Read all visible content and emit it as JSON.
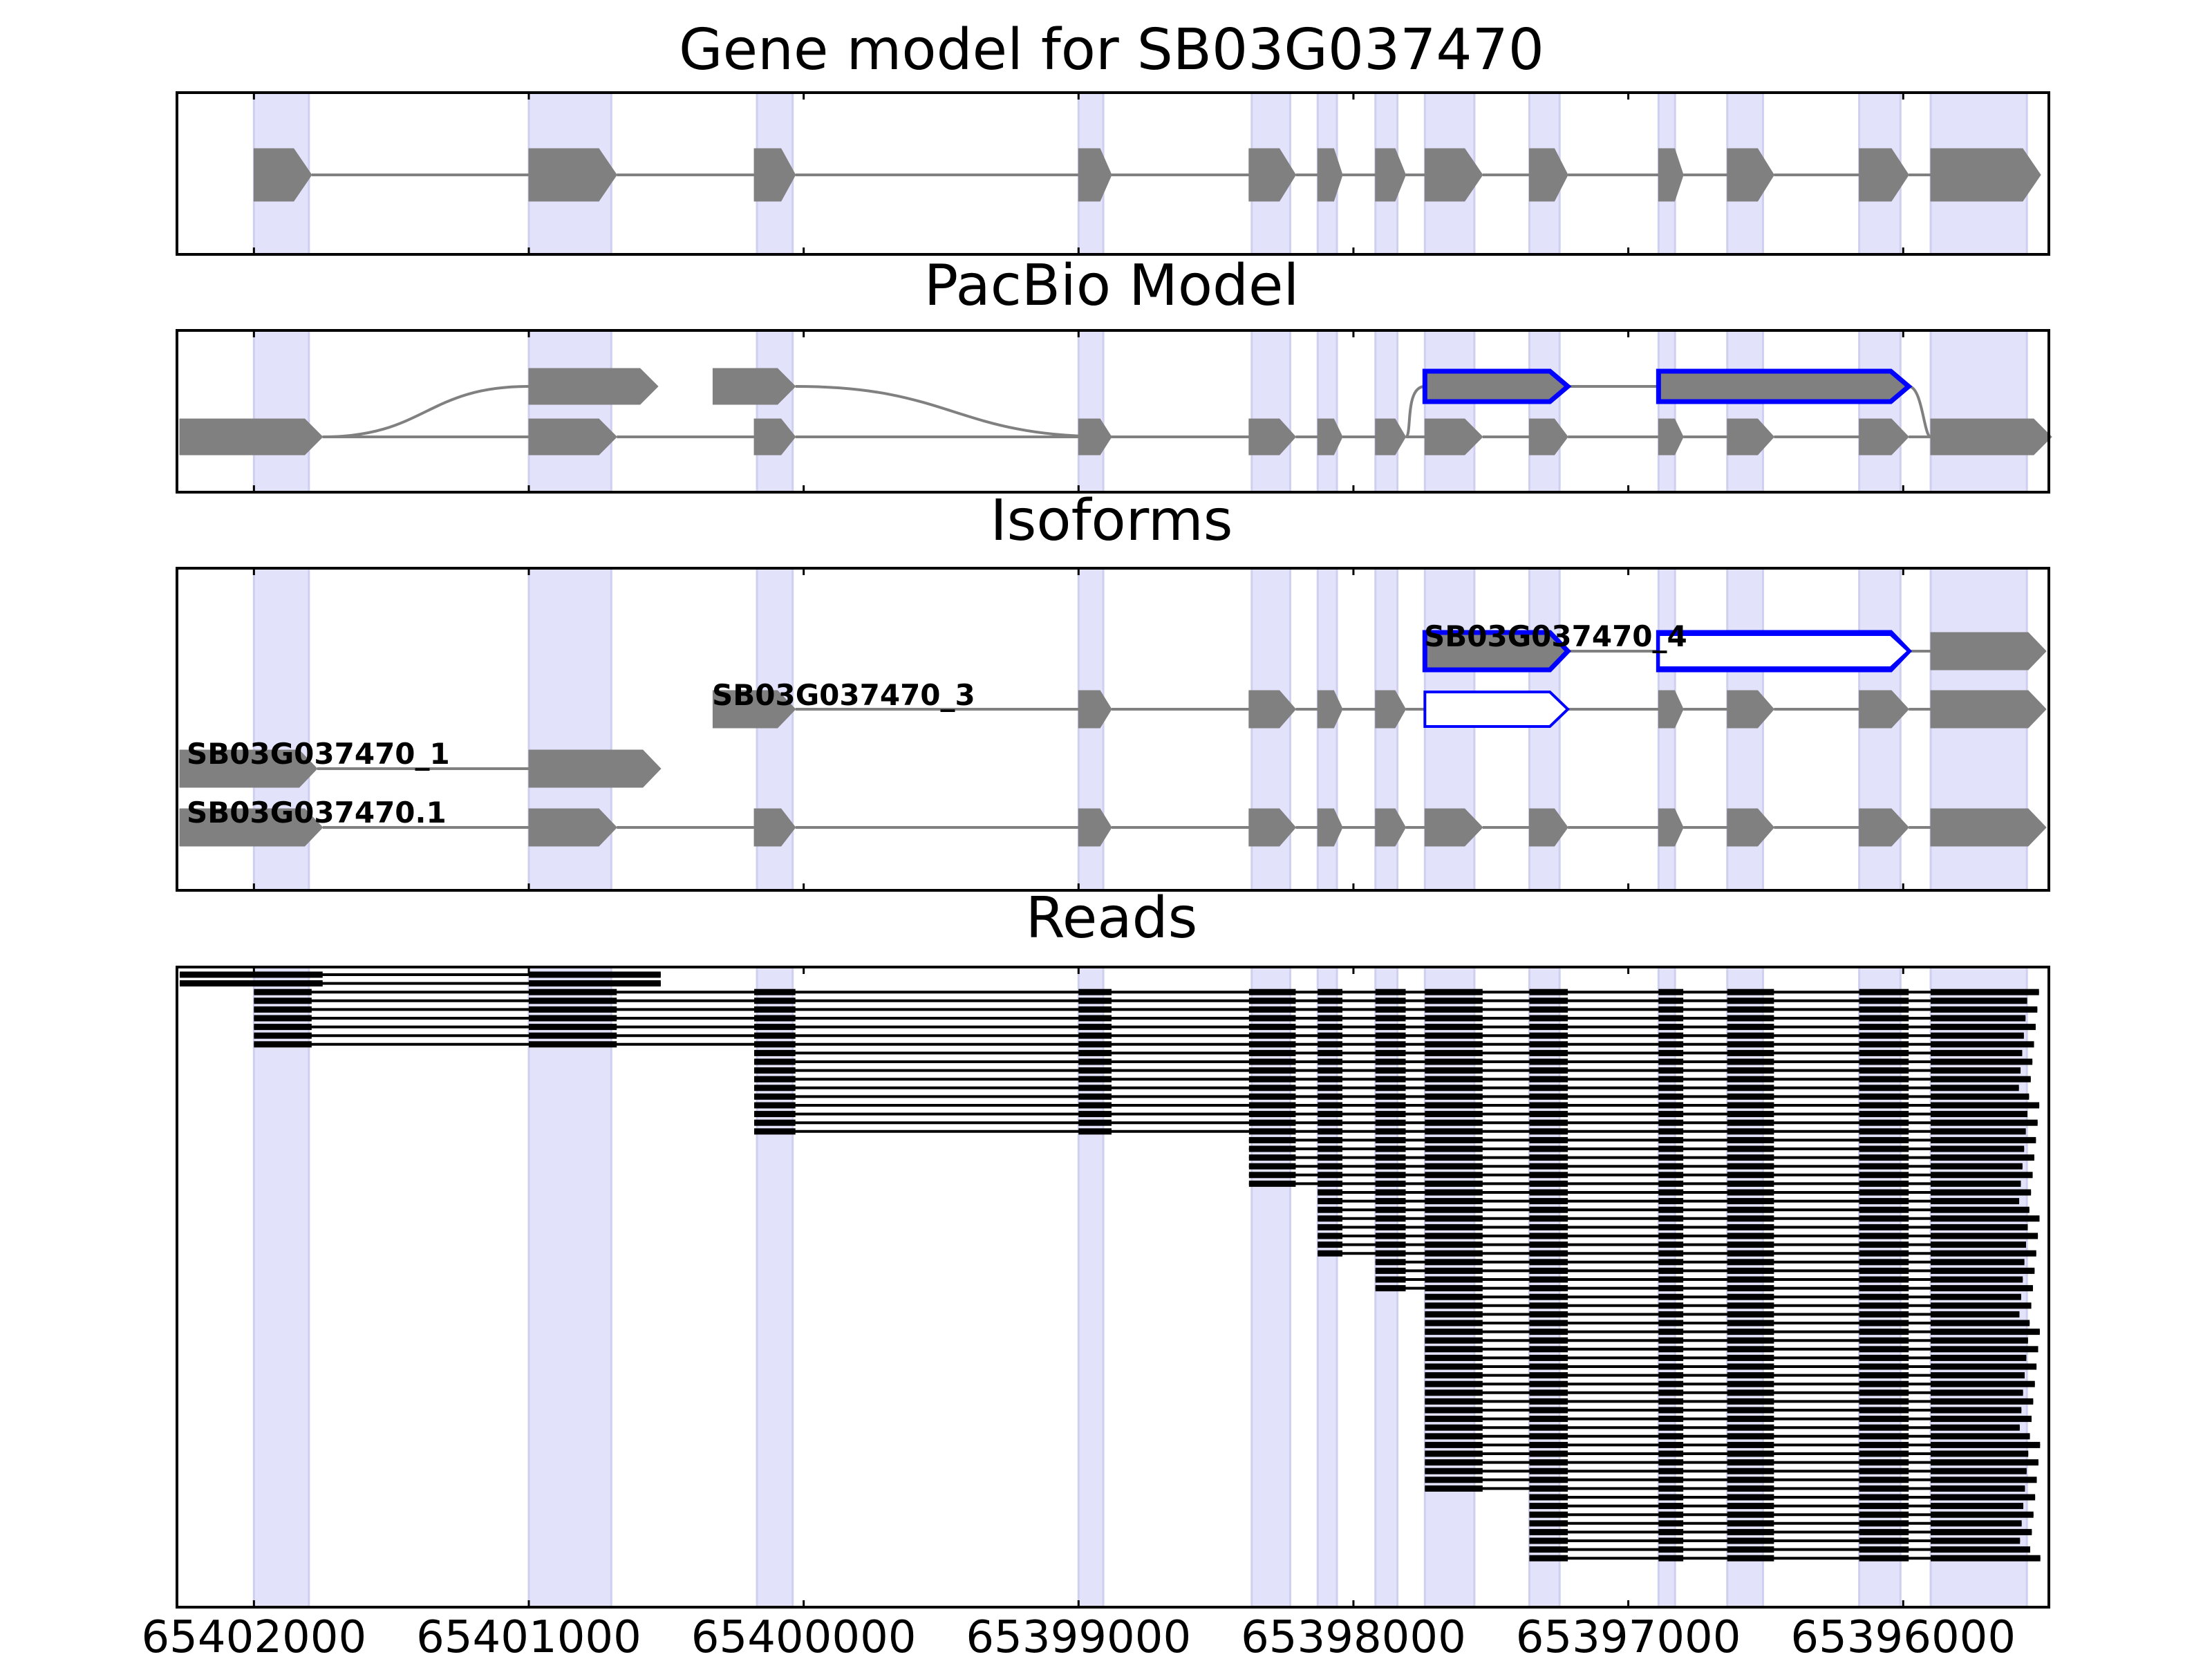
{
  "chart_data": {
    "type": "gene_track",
    "colors": {
      "exon": "#808080",
      "intron": "#808080",
      "highlight_fill": "#0000ff",
      "highlight_stroke": "#0000ff",
      "band": "#e2e2fb",
      "read": "#000000"
    },
    "x_axis": {
      "reversed": true,
      "range": [
        65402280,
        65395470
      ],
      "ticks": [
        65402000,
        65401000,
        65400000,
        65399000,
        65398000,
        65397000,
        65396000
      ],
      "tick_labels": [
        "65402000",
        "65401000",
        "65400000",
        "65399000",
        "65398000",
        "65397000",
        "65396000"
      ]
    },
    "exon_bands": [
      [
        65402000,
        65401800
      ],
      [
        65401000,
        65400700
      ],
      [
        65400170,
        65400040
      ],
      [
        65399000,
        65398910
      ],
      [
        65398370,
        65398230
      ],
      [
        65398130,
        65398060
      ],
      [
        65397920,
        65397840
      ],
      [
        65397740,
        65397560
      ],
      [
        65397360,
        65397250
      ],
      [
        65396890,
        65396830
      ],
      [
        65396640,
        65396510
      ],
      [
        65396160,
        65396010
      ],
      [
        65395900,
        65395550
      ]
    ],
    "panels": [
      {
        "title": "Gene model for SB03G037470",
        "tracks": [
          {
            "exons": [
              [
                65402000,
                65401790
              ],
              [
                65401000,
                65400680
              ],
              [
                65400180,
                65400030
              ],
              [
                65399000,
                65398880
              ],
              [
                65398380,
                65398210
              ],
              [
                65398130,
                65398040
              ],
              [
                65397920,
                65397810
              ],
              [
                65397740,
                65397530
              ],
              [
                65397360,
                65397220
              ],
              [
                65396890,
                65396800
              ],
              [
                65396640,
                65396470
              ],
              [
                65396160,
                65395980
              ],
              [
                65395900,
                65395500
              ]
            ]
          }
        ]
      },
      {
        "title": "PacBio Model",
        "tracks": [
          {
            "exons": [
              [
                65402270,
                65401750
              ],
              [
                65401000,
                65400680
              ],
              [
                65400180,
                65400030
              ],
              [
                65399000,
                65398880
              ],
              [
                65398380,
                65398210
              ],
              [
                65398130,
                65398040
              ],
              [
                65397920,
                65397810
              ],
              [
                65397740,
                65397530
              ],
              [
                65397360,
                65397220
              ],
              [
                65396890,
                65396800
              ],
              [
                65396640,
                65396470
              ],
              [
                65396160,
                65395980
              ],
              [
                65395900,
                65395460
              ]
            ]
          },
          {
            "exons": [
              [
                65401000,
                65400530
              ],
              [
                65400330,
                65400030
              ]
            ],
            "join_from": 65401750,
            "join_to": 65398880
          },
          {
            "exons": [
              [
                65397740,
                65397220
              ],
              [
                65396890,
                65395980
              ]
            ],
            "highlight": true,
            "join_from": 65397810,
            "join_to": 65395900
          }
        ]
      },
      {
        "title": "Isoforms",
        "labels": [
          "SB03G037470_4",
          "SB03G037470_3",
          "SB03G037470_1",
          "SB03G037470.1"
        ],
        "tracks": [
          {
            "label": "SB03G037470_4",
            "exons": [
              [
                65397740,
                65397220
              ],
              [
                65396890,
                65395980
              ],
              [
                65395900,
                65395480
              ]
            ],
            "highlight": [
              true,
              true,
              false
            ]
          },
          {
            "exons": [
              [
                65400180,
                65400030
              ],
              [
                65399000,
                65398880
              ],
              [
                65398380,
                65398210
              ],
              [
                65398130,
                65398040
              ],
              [
                65397920,
                65397810
              ],
              [
                65397740,
                65397220
              ],
              [
                65396890,
                65396800
              ],
              [
                65396640,
                65396470
              ],
              [
                65396160,
                65395980
              ],
              [
                65395900,
                65395480
              ]
            ],
            "extra": [
              [
                65400330,
                65400180
              ]
            ],
            "highlight_index": 5
          },
          {
            "label": "SB03G037470_3",
            "exons": [
              [
                65400330,
                65400030
              ],
              [
                65399000,
                65398880
              ],
              [
                65398380,
                65398210
              ],
              [
                65398130,
                65398040
              ],
              [
                65397920,
                65397810
              ],
              [
                65397740,
                65397220
              ],
              [
                65396890,
                65396800
              ],
              [
                65396640,
                65396470
              ],
              [
                65396160,
                65395980
              ],
              [
                65395900,
                65395480
              ]
            ]
          },
          {
            "label": "SB03G037470_1",
            "exons": [
              [
                65402270,
                65401770
              ],
              [
                65401000,
                65400520
              ]
            ]
          },
          {
            "label": "SB03G037470.1",
            "exons": [
              [
                65402270,
                65401750
              ],
              [
                65401000,
                65400680
              ],
              [
                65400180,
                65400030
              ],
              [
                65399000,
                65398880
              ],
              [
                65398380,
                65398210
              ],
              [
                65398130,
                65398040
              ],
              [
                65397920,
                65397810
              ],
              [
                65397740,
                65397530
              ],
              [
                65397360,
                65397220
              ],
              [
                65396890,
                65396800
              ],
              [
                65396640,
                65396470
              ],
              [
                65396160,
                65395980
              ],
              [
                65395900,
                65395480
              ]
            ]
          }
        ]
      },
      {
        "title": "Reads",
        "read_count": 68
      }
    ]
  }
}
